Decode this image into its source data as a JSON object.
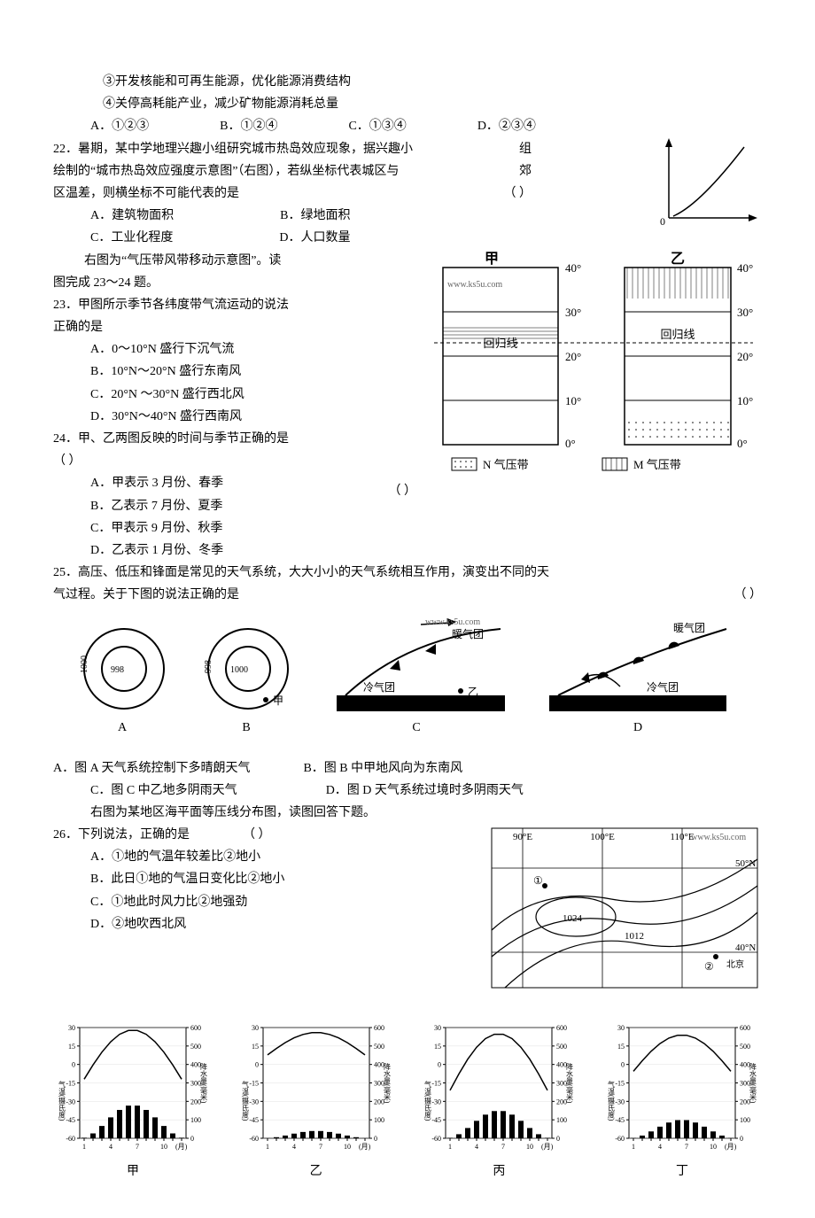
{
  "pre": {
    "item3": "③开发核能和可再生能源，优化能源消费结构",
    "item4": "④关停高耗能产业，减少矿物能源消耗总量",
    "opts": {
      "a": "A．①②③",
      "b": "B．①②④",
      "c": "C．①③④",
      "d": "D．②③④"
    }
  },
  "q22": {
    "num": "22．",
    "text1": "暑期，某中学地理兴趣小组研究城市热岛效应现象，据兴趣小",
    "text1_end": "组",
    "text2": "绘制的“城市热岛效应强度示意图”（右图），若纵坐标代表城区与",
    "text2_end": "郊",
    "text3": "区温差，则横坐标不可能代表的是",
    "paren": "（     ）",
    "opts": {
      "a": "A．建筑物面积",
      "b": "B．绿地面积",
      "c": "C．工业化程度",
      "d": "D．人口数量"
    },
    "graph": {
      "origin_label": "0"
    }
  },
  "q23_24_intro": {
    "text1": "右图为“气压带风带移动示意图”。读",
    "text2": "图完成 23～24 题。"
  },
  "q23": {
    "num": "23．",
    "text1": "甲图所示季节各纬度带气流运动的说法",
    "text2": "正确的是",
    "paren": "（     ）",
    "opts": {
      "a": "A．0～10°N 盛行下沉气流",
      "b": "B．10°N～20°N 盛行东南风",
      "c": "C．20°N ～30°N 盛行西北风",
      "d": "D．30°N～40°N 盛行西南风"
    }
  },
  "q24": {
    "num": "24．",
    "text": "甲、乙两图反映的时间与季节正确的是",
    "paren": "（     ）",
    "opts": {
      "a": "A．甲表示 3 月份、春季",
      "b": "B．乙表示 7 月份、夏季",
      "c": "C．甲表示 9 月份、秋季",
      "d": "D．乙表示 1 月份、冬季"
    }
  },
  "pressure_diagram": {
    "labels": {
      "jia": "甲",
      "yi": "乙",
      "tropic": "回归线",
      "n_belt": "N 气压带",
      "m_belt": "M 气压带"
    },
    "lats": [
      "0°",
      "10°",
      "20°",
      "30°",
      "40°"
    ],
    "url": "www.ks5u.com"
  },
  "q25": {
    "num": "25．",
    "text1": "高压、低压和锋面是常见的天气系统，大大小小的天气系统相互作用，演变出不同的天",
    "text2": "气过程。关于下图的说法正确的是",
    "paren": "（    ）",
    "diagram": {
      "labels": [
        "A",
        "B",
        "C",
        "D"
      ],
      "val1000": "1000",
      "val998": "998",
      "jia": "甲",
      "yi": "乙",
      "warm": "暖气团",
      "cold": "冷气团",
      "url": "www.ks5u.com"
    },
    "opts": {
      "a": "A．图 A 天气系统控制下多晴朗天气",
      "b": "B．图 B 中甲地风向为东南风",
      "c": "C．图 C 中乙地多阴雨天气",
      "d": "D．图 D 天气系统过境时多阴雨天气"
    },
    "post": "右图为某地区海平面等压线分布图，读图回答下题。"
  },
  "q26": {
    "num": "26．",
    "text": "下列说法，正确的是",
    "paren": "（     ）",
    "opts": {
      "a": "A．①地的气温年较差比②地小",
      "b": "B．此日①地的气温日变化比②地小",
      "c": "C．①地此时风力比②地强劲",
      "d": "D．②地吹西北风"
    },
    "map": {
      "lons": [
        "90°E",
        "100°E",
        "110°E"
      ],
      "lats": [
        "50°N",
        "40°N"
      ],
      "p1024": "1024",
      "p1012": "1012",
      "pt1": "①",
      "pt2": "②",
      "beijing": "北京",
      "url": "www.ks5u.com"
    }
  },
  "climate_charts": {
    "y_temp": [
      30,
      15,
      0,
      -15,
      -30,
      -45,
      -60
    ],
    "y_precip": [
      600,
      500,
      400,
      300,
      200,
      100,
      0
    ],
    "x_months": [
      1,
      4,
      7,
      10
    ],
    "temp_label": "气温(摄氏度)",
    "precip_label": "降水量(毫米)",
    "month_suffix": "(月)",
    "names": [
      "甲",
      "乙",
      "丙",
      "丁"
    ]
  },
  "colors": {
    "text": "#000000",
    "bg": "#ffffff",
    "line": "#000000",
    "hatch": "#000000"
  }
}
